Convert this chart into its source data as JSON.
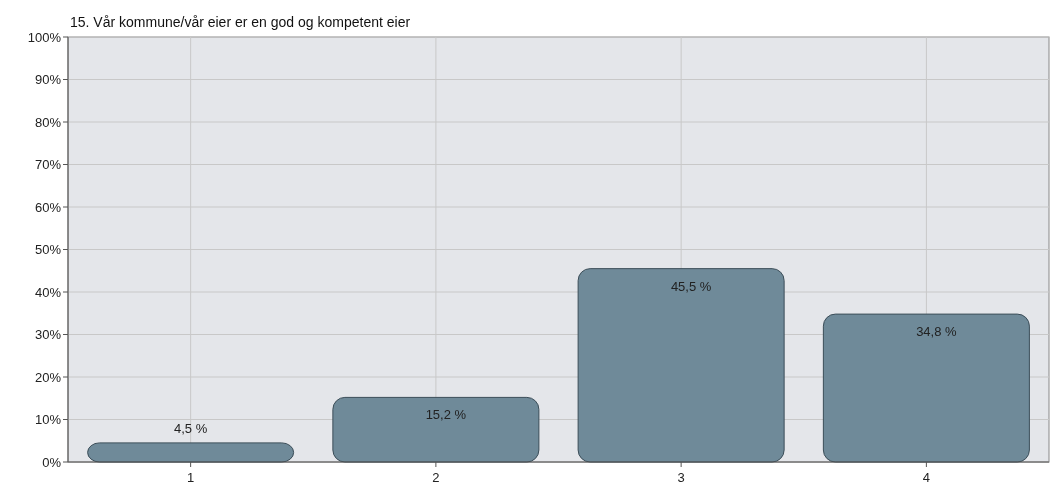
{
  "chart_data": {
    "type": "bar",
    "title": "15. Vår kommune/vår eier er en god og kompetent eier",
    "categories": [
      "1",
      "2",
      "3",
      "4"
    ],
    "values": [
      4.5,
      15.2,
      45.5,
      34.8
    ],
    "value_labels": [
      "4,5 %",
      "15,2 %",
      "45,5 %",
      "34,8 %"
    ],
    "color": "#6f8a99",
    "ylim": [
      0,
      100
    ],
    "yticks": [
      {
        "value": 0,
        "label": "0%"
      },
      {
        "value": 10,
        "label": "10%"
      },
      {
        "value": 20,
        "label": "20%"
      },
      {
        "value": 30,
        "label": "30%"
      },
      {
        "value": 40,
        "label": "40%"
      },
      {
        "value": 50,
        "label": "50%"
      },
      {
        "value": 60,
        "label": "60%"
      },
      {
        "value": 70,
        "label": "70%"
      },
      {
        "value": 80,
        "label": "80%"
      },
      {
        "value": 90,
        "label": "90%"
      },
      {
        "value": 100,
        "label": "100%"
      }
    ],
    "grid": true
  }
}
